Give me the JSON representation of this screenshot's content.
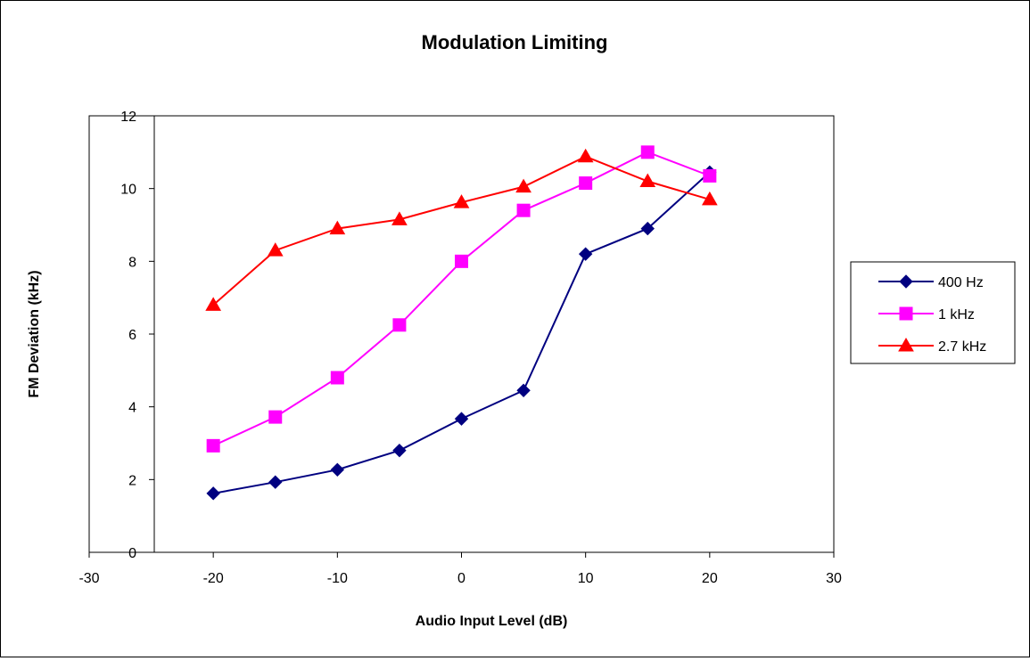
{
  "chart_data": {
    "type": "line",
    "title": "Modulation Limiting",
    "xlabel": "Audio Input Level (dB)",
    "ylabel": "FM Deviation (kHz)",
    "xlim": [
      -30,
      30
    ],
    "ylim": [
      0,
      12
    ],
    "xticks": [
      "-30",
      "-20",
      "-10",
      "0",
      "10",
      "20",
      "30"
    ],
    "yticks": [
      "0",
      "2",
      "4",
      "6",
      "8",
      "10",
      "12"
    ],
    "grid": false,
    "legend_position": "right",
    "x": [
      -20,
      -15,
      -10,
      -5,
      0,
      5,
      10,
      15,
      20
    ],
    "series": [
      {
        "name": "400 Hz",
        "color": "#000080",
        "marker": "diamond",
        "values": [
          1.62,
          1.93,
          2.27,
          2.8,
          3.67,
          4.45,
          8.2,
          8.9,
          10.45
        ]
      },
      {
        "name": "1 kHz",
        "color": "#ff00ff",
        "marker": "square",
        "values": [
          2.93,
          3.72,
          4.8,
          6.25,
          8.0,
          9.4,
          10.15,
          11.0,
          10.35
        ]
      },
      {
        "name": "2.7 kHz",
        "color": "#ff0000",
        "marker": "triangle",
        "values": [
          6.8,
          8.3,
          8.9,
          9.15,
          9.62,
          10.05,
          10.88,
          10.2,
          9.7
        ]
      }
    ]
  }
}
